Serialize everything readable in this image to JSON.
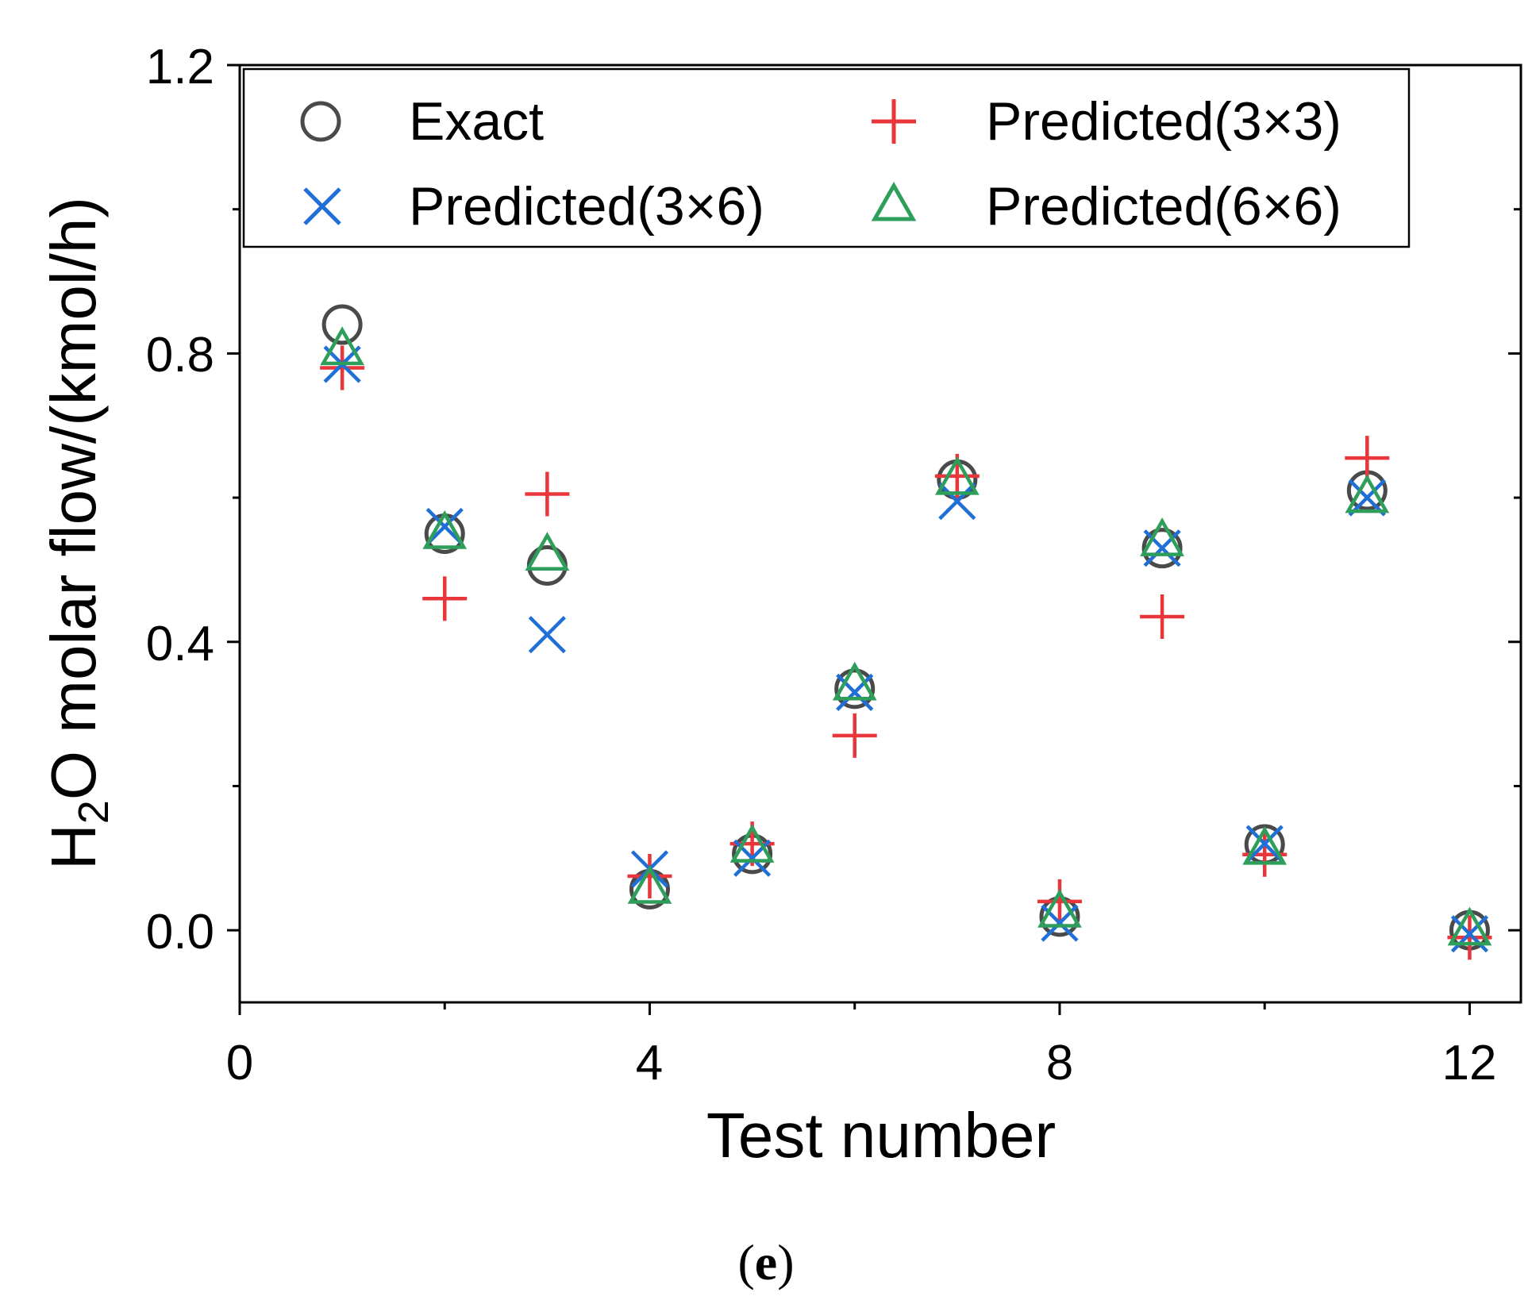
{
  "chart_data": {
    "type": "scatter",
    "xlabel": "Test number",
    "ylabel_parts": [
      "H",
      "2",
      "O molar flow/(kmol/h)"
    ],
    "xlim": [
      0,
      12.5
    ],
    "ylim": [
      -0.1,
      1.2
    ],
    "xticks": [
      0,
      4,
      8,
      12
    ],
    "xtick_labels": [
      "0",
      "4",
      "8",
      "12"
    ],
    "xminor": [
      2,
      6,
      10
    ],
    "yticks": [
      0.0,
      0.4,
      0.8,
      1.2
    ],
    "ytick_labels": [
      "0.0",
      "0.4",
      "0.8",
      "1.2"
    ],
    "yminor": [
      0.2,
      0.6,
      1.0
    ],
    "grid": false,
    "legend_position": "top",
    "x": [
      1,
      2,
      3,
      4,
      5,
      6,
      7,
      8,
      9,
      10,
      11,
      12
    ],
    "series": [
      {
        "name": "Exact",
        "marker": "circle",
        "color": "#4a4a4a",
        "values": [
          0.84,
          0.55,
          0.506,
          0.057,
          0.106,
          0.335,
          0.625,
          0.019,
          0.53,
          0.119,
          0.61,
          0.0
        ]
      },
      {
        "name": "Predicted(3×3)",
        "marker": "plus",
        "color": "#e8363b",
        "values": [
          0.78,
          0.46,
          0.605,
          0.075,
          0.12,
          0.27,
          0.63,
          0.04,
          0.435,
          0.105,
          0.655,
          -0.01
        ]
      },
      {
        "name": "Predicted(3×6)",
        "marker": "x",
        "color": "#1f6fd6",
        "values": [
          0.785,
          0.56,
          0.41,
          0.085,
          0.1,
          0.33,
          0.595,
          0.01,
          0.53,
          0.12,
          0.6,
          -0.005
        ]
      },
      {
        "name": "Predicted(6×6)",
        "marker": "triangle",
        "color": "#2e9e5b",
        "values": [
          0.805,
          0.55,
          0.52,
          0.058,
          0.115,
          0.34,
          0.625,
          0.025,
          0.54,
          0.112,
          0.6,
          0.0
        ]
      }
    ]
  },
  "legend": {
    "items": [
      {
        "label": "Exact",
        "marker": "circle",
        "color": "#4a4a4a"
      },
      {
        "label": "Predicted(3×3)",
        "marker": "plus",
        "color": "#e8363b"
      },
      {
        "label": "Predicted(3×6)",
        "marker": "x",
        "color": "#1f6fd6"
      },
      {
        "label": "Predicted(6×6)",
        "marker": "triangle",
        "color": "#2e9e5b"
      }
    ]
  },
  "caption": {
    "open": "(",
    "letter": "e",
    "close": ")"
  }
}
